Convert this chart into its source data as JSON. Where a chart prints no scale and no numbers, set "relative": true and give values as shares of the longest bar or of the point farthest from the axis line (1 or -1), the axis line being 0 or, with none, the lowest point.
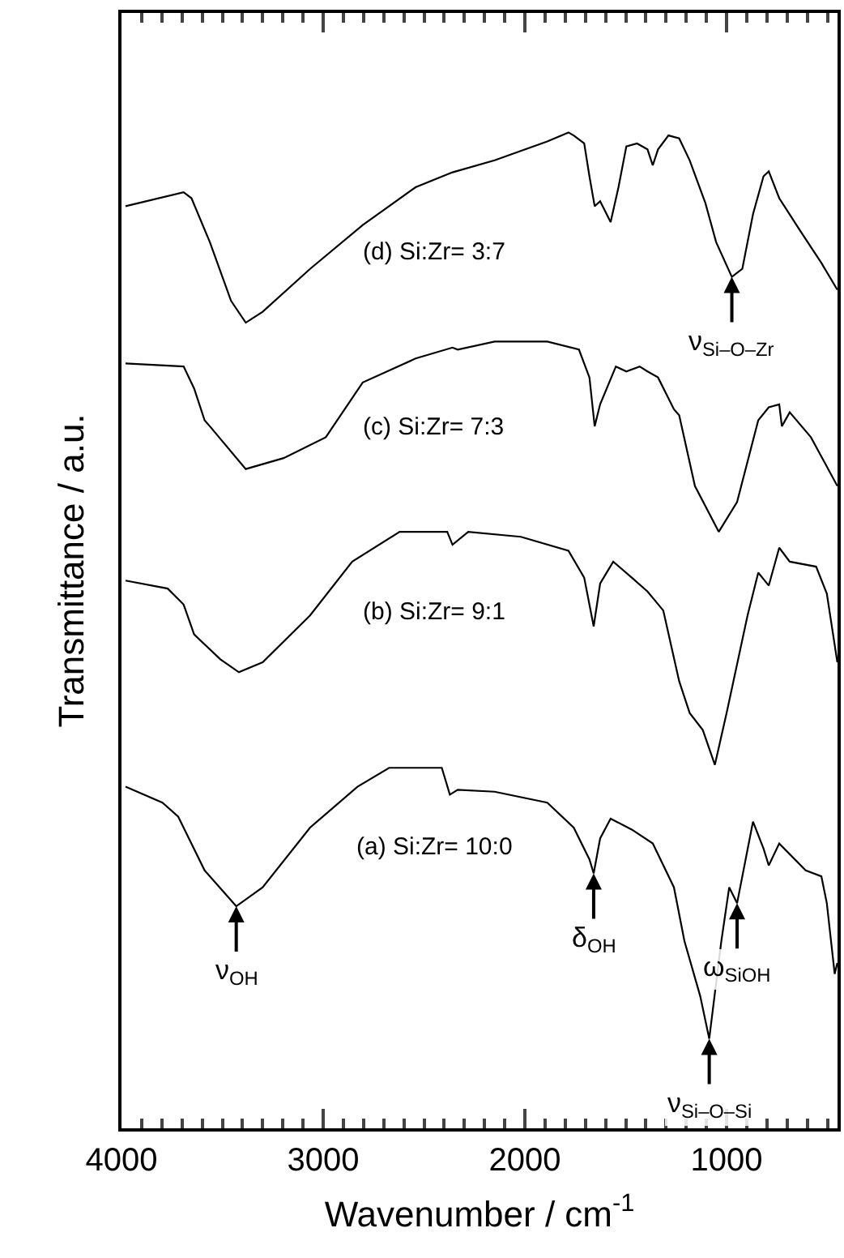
{
  "chart_data": {
    "type": "line",
    "relative": true,
    "xlabel": "Wavenumber / cm$^{-1}$",
    "ylabel": "Transmittance / a.u.",
    "xlim": [
      4000,
      450
    ],
    "xticks": [
      4000,
      3000,
      2000,
      1000
    ],
    "legend": false,
    "series": [
      {
        "name": "(a) Si:Zr= 10:0",
        "color": "#000000",
        "x": [
          3980,
          3797,
          3719,
          3588,
          3431,
          3300,
          3065,
          2830,
          2673,
          2412,
          2372,
          2333,
          2150,
          1889,
          1758,
          1680,
          1659,
          1627,
          1575,
          1470,
          1366,
          1261,
          1209,
          1131,
          1086,
          1026,
          987,
          948,
          895,
          869,
          817,
          791,
          739,
          608,
          530,
          503,
          464,
          451
        ],
        "values": [
          0.343,
          0.327,
          0.313,
          0.259,
          0.223,
          0.242,
          0.302,
          0.343,
          0.362,
          0.362,
          0.335,
          0.34,
          0.338,
          0.327,
          0.302,
          0.27,
          0.256,
          0.291,
          0.311,
          0.3,
          0.286,
          0.242,
          0.188,
          0.133,
          0.09,
          0.188,
          0.242,
          0.226,
          0.281,
          0.308,
          0.281,
          0.264,
          0.286,
          0.259,
          0.253,
          0.226,
          0.155,
          0.166
        ]
      },
      {
        "name": "(b) Si:Zr= 9:1",
        "color": "#000000",
        "x": [
          3980,
          3771,
          3692,
          3640,
          3510,
          3418,
          3300,
          3065,
          2856,
          2621,
          2385,
          2359,
          2281,
          2020,
          1784,
          1706,
          1659,
          1627,
          1562,
          1470,
          1392,
          1314,
          1235,
          1183,
          1118,
          1058,
          1000,
          896,
          843,
          791,
          739,
          687,
          556,
          503,
          451
        ],
        "values": [
          0.55,
          0.542,
          0.526,
          0.496,
          0.471,
          0.458,
          0.468,
          0.515,
          0.569,
          0.599,
          0.599,
          0.586,
          0.599,
          0.594,
          0.58,
          0.553,
          0.504,
          0.547,
          0.569,
          0.553,
          0.539,
          0.52,
          0.449,
          0.417,
          0.4,
          0.365,
          0.417,
          0.515,
          0.558,
          0.545,
          0.583,
          0.569,
          0.564,
          0.537,
          0.468
        ]
      },
      {
        "name": "(c) Si:Zr= 7:3",
        "color": "#000000",
        "x": [
          3980,
          3692,
          3640,
          3588,
          3562,
          3384,
          3196,
          2987,
          2804,
          2542,
          2359,
          2333,
          2150,
          1889,
          1732,
          1680,
          1654,
          1627,
          1549,
          1497,
          1431,
          1392,
          1340,
          1261,
          1235,
          1157,
          1039,
          948,
          843,
          791,
          739,
          726,
          687,
          582,
          451
        ],
        "values": [
          0.768,
          0.765,
          0.743,
          0.711,
          0.705,
          0.662,
          0.673,
          0.694,
          0.749,
          0.773,
          0.784,
          0.782,
          0.79,
          0.79,
          0.782,
          0.754,
          0.705,
          0.727,
          0.765,
          0.76,
          0.765,
          0.76,
          0.754,
          0.722,
          0.716,
          0.645,
          0.599,
          0.629,
          0.711,
          0.724,
          0.727,
          0.705,
          0.719,
          0.694,
          0.645
        ]
      },
      {
        "name": "(d) Si:Zr= 3:7",
        "color": "#000000",
        "x": [
          3980,
          3692,
          3653,
          3562,
          3457,
          3384,
          3300,
          3065,
          2804,
          2542,
          2359,
          2150,
          1889,
          1784,
          1758,
          1706,
          1680,
          1654,
          1627,
          1575,
          1536,
          1497,
          1444,
          1392,
          1366,
          1340,
          1288,
          1235,
          1183,
          1105,
          1052,
          974,
          922,
          869,
          817,
          791,
          739,
          634,
          530,
          451
        ],
        "values": [
          0.926,
          0.94,
          0.934,
          0.89,
          0.831,
          0.809,
          0.82,
          0.863,
          0.907,
          0.945,
          0.96,
          0.972,
          0.991,
          1.0,
          0.997,
          0.989,
          0.956,
          0.926,
          0.931,
          0.91,
          0.945,
          0.986,
          0.989,
          0.983,
          0.967,
          0.983,
          0.997,
          0.994,
          0.972,
          0.929,
          0.89,
          0.855,
          0.863,
          0.918,
          0.956,
          0.961,
          0.934,
          0.901,
          0.869,
          0.842
        ]
      }
    ],
    "annotations": [
      {
        "text": "ν$_{OH}$",
        "x": 3431,
        "y": 0.223
      },
      {
        "text": "δ$_{OH}$",
        "x": 1659,
        "y": 0.256
      },
      {
        "text": "ν$_{Si–O–Si}$",
        "x": 1086,
        "y": 0.09
      },
      {
        "text": "ω$_{SiOH}$",
        "x": 948,
        "y": 0.226
      },
      {
        "text": "ν$_{Si–O–Zr}$",
        "x": 974,
        "y": 0.855
      }
    ]
  }
}
